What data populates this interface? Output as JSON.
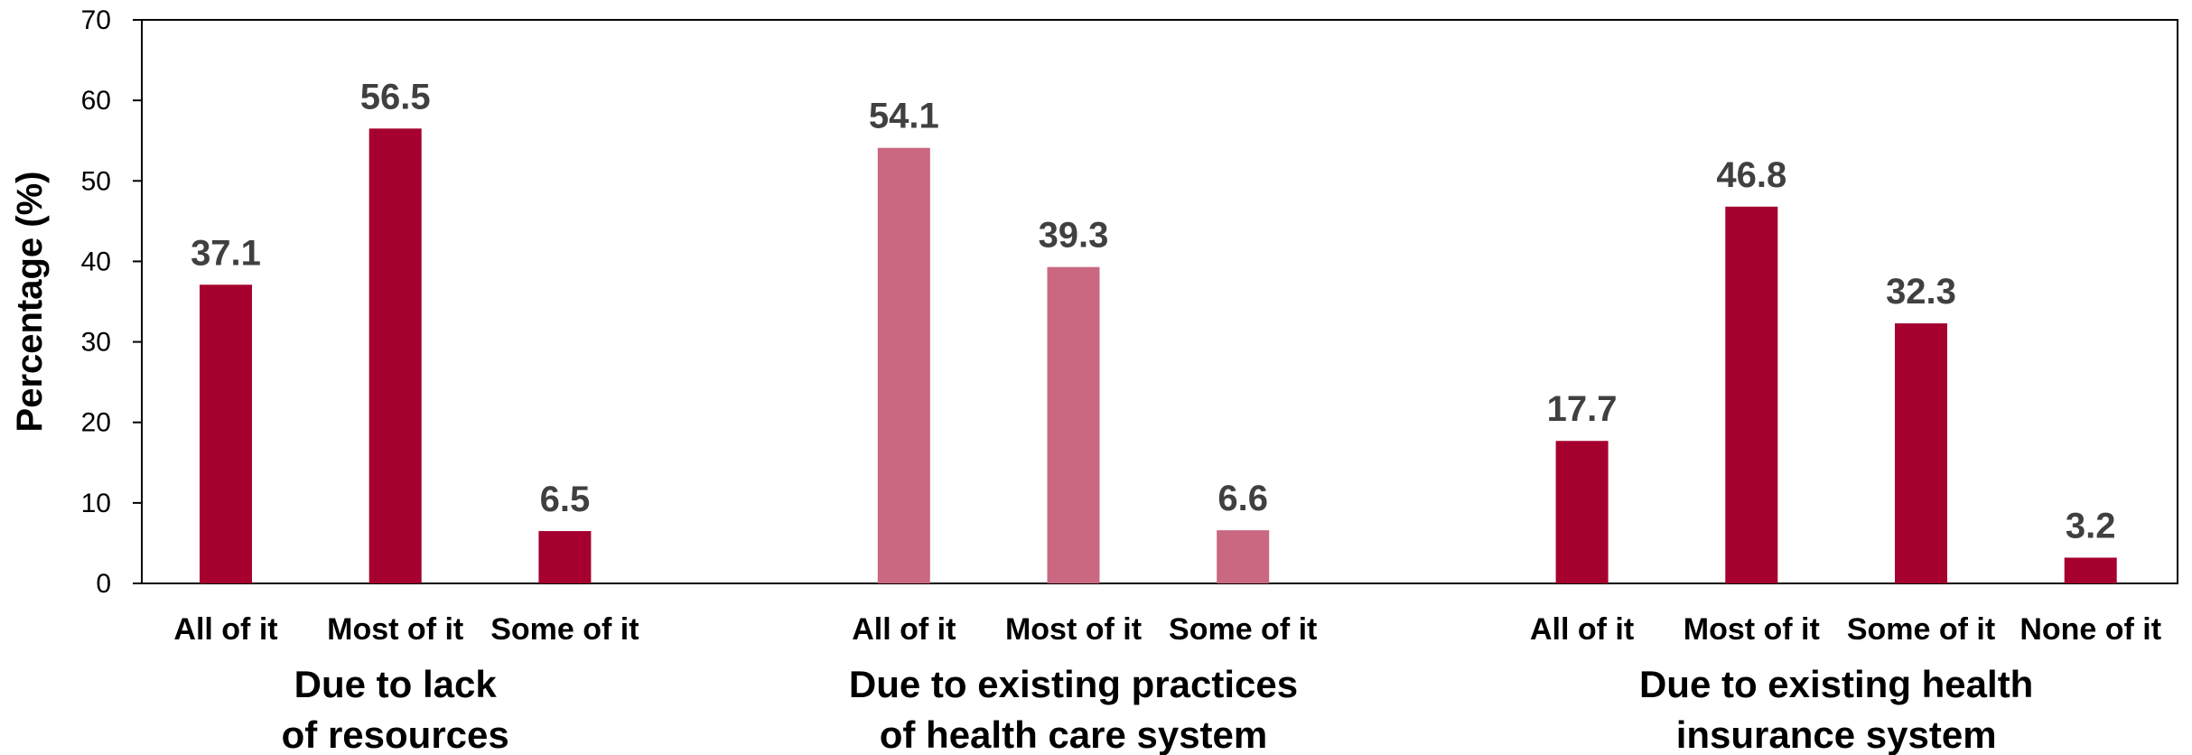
{
  "chart_data": {
    "type": "bar",
    "ylabel": "Percentage (%)",
    "ylim": [
      0,
      70
    ],
    "yticks": [
      0,
      10,
      20,
      30,
      40,
      50,
      60,
      70
    ],
    "grid": false,
    "groups": [
      {
        "name_lines": [
          "Due to lack",
          "of resources"
        ],
        "color": "#a5002e",
        "categories": [
          "All of it",
          "Most of it",
          "Some of it"
        ],
        "values": [
          37.1,
          56.5,
          6.5
        ],
        "value_labels": [
          "37.1",
          "56.5",
          "6.5"
        ]
      },
      {
        "name_lines": [
          "Due to existing practices",
          "of health care system"
        ],
        "color": "#c96880",
        "categories": [
          "All of it",
          "Most of it",
          "Some of it"
        ],
        "values": [
          54.1,
          39.3,
          6.6
        ],
        "value_labels": [
          "54.1",
          "39.3",
          "6.6"
        ]
      },
      {
        "name_lines": [
          "Due to existing health",
          "insurance system"
        ],
        "color": "#a5002e",
        "categories": [
          "All of it",
          "Most of it",
          "Some of it",
          "None of it"
        ],
        "values": [
          17.7,
          46.8,
          32.3,
          3.2
        ],
        "value_labels": [
          "17.7",
          "46.8",
          "32.3",
          "3.2"
        ]
      }
    ]
  }
}
